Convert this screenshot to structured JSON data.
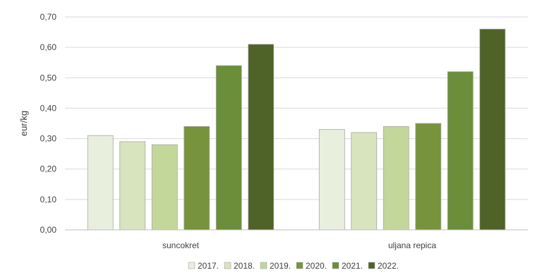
{
  "chart_data": {
    "type": "bar",
    "ylabel": "eur/kg",
    "ylim": [
      0,
      0.7
    ],
    "yticks": [
      "0,00",
      "0,10",
      "0,20",
      "0,30",
      "0,40",
      "0,50",
      "0,60",
      "0,70"
    ],
    "grid": true,
    "legend_position": "bottom",
    "categories": [
      "suncokret",
      "uljana repica"
    ],
    "series": [
      {
        "name": "2017.",
        "color": "#e9efdd",
        "values": [
          0.31,
          0.33
        ]
      },
      {
        "name": "2018.",
        "color": "#d7e4bd",
        "values": [
          0.29,
          0.32
        ]
      },
      {
        "name": "2019.",
        "color": "#c4d79b",
        "values": [
          0.28,
          0.34
        ]
      },
      {
        "name": "2020.",
        "color": "#77933c",
        "values": [
          0.34,
          0.35
        ]
      },
      {
        "name": "2021.",
        "color": "#6b8e3a",
        "values": [
          0.54,
          0.52
        ]
      },
      {
        "name": "2022.",
        "color": "#4f6228",
        "values": [
          0.61,
          0.66
        ]
      }
    ]
  }
}
